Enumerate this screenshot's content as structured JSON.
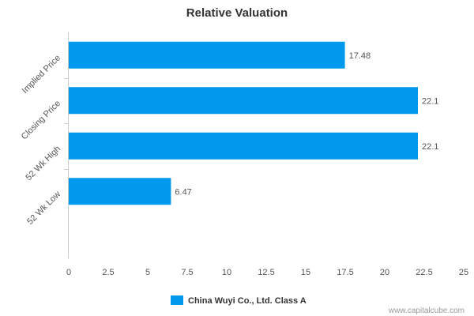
{
  "chart_data": {
    "type": "bar",
    "orientation": "horizontal",
    "title": "Relative Valuation",
    "categories": [
      "Implied Price",
      "Closing Price",
      "52 Wk High",
      "52 Wk Low"
    ],
    "series": [
      {
        "name": "China Wuyi Co., Ltd. Class A",
        "values": [
          17.48,
          22.1,
          22.1,
          6.47
        ],
        "value_labels": [
          "17.48",
          "22.1",
          "22.1",
          "6.47"
        ],
        "color": "#0099ee"
      }
    ],
    "xlim": [
      0,
      25
    ],
    "x_ticks": [
      "0",
      "2.5",
      "5",
      "7.5",
      "10",
      "12.5",
      "15",
      "17.5",
      "20",
      "22.5",
      "25"
    ],
    "grid": false,
    "legend_position": "bottom-center"
  },
  "credit": "www.capitalcube.com"
}
